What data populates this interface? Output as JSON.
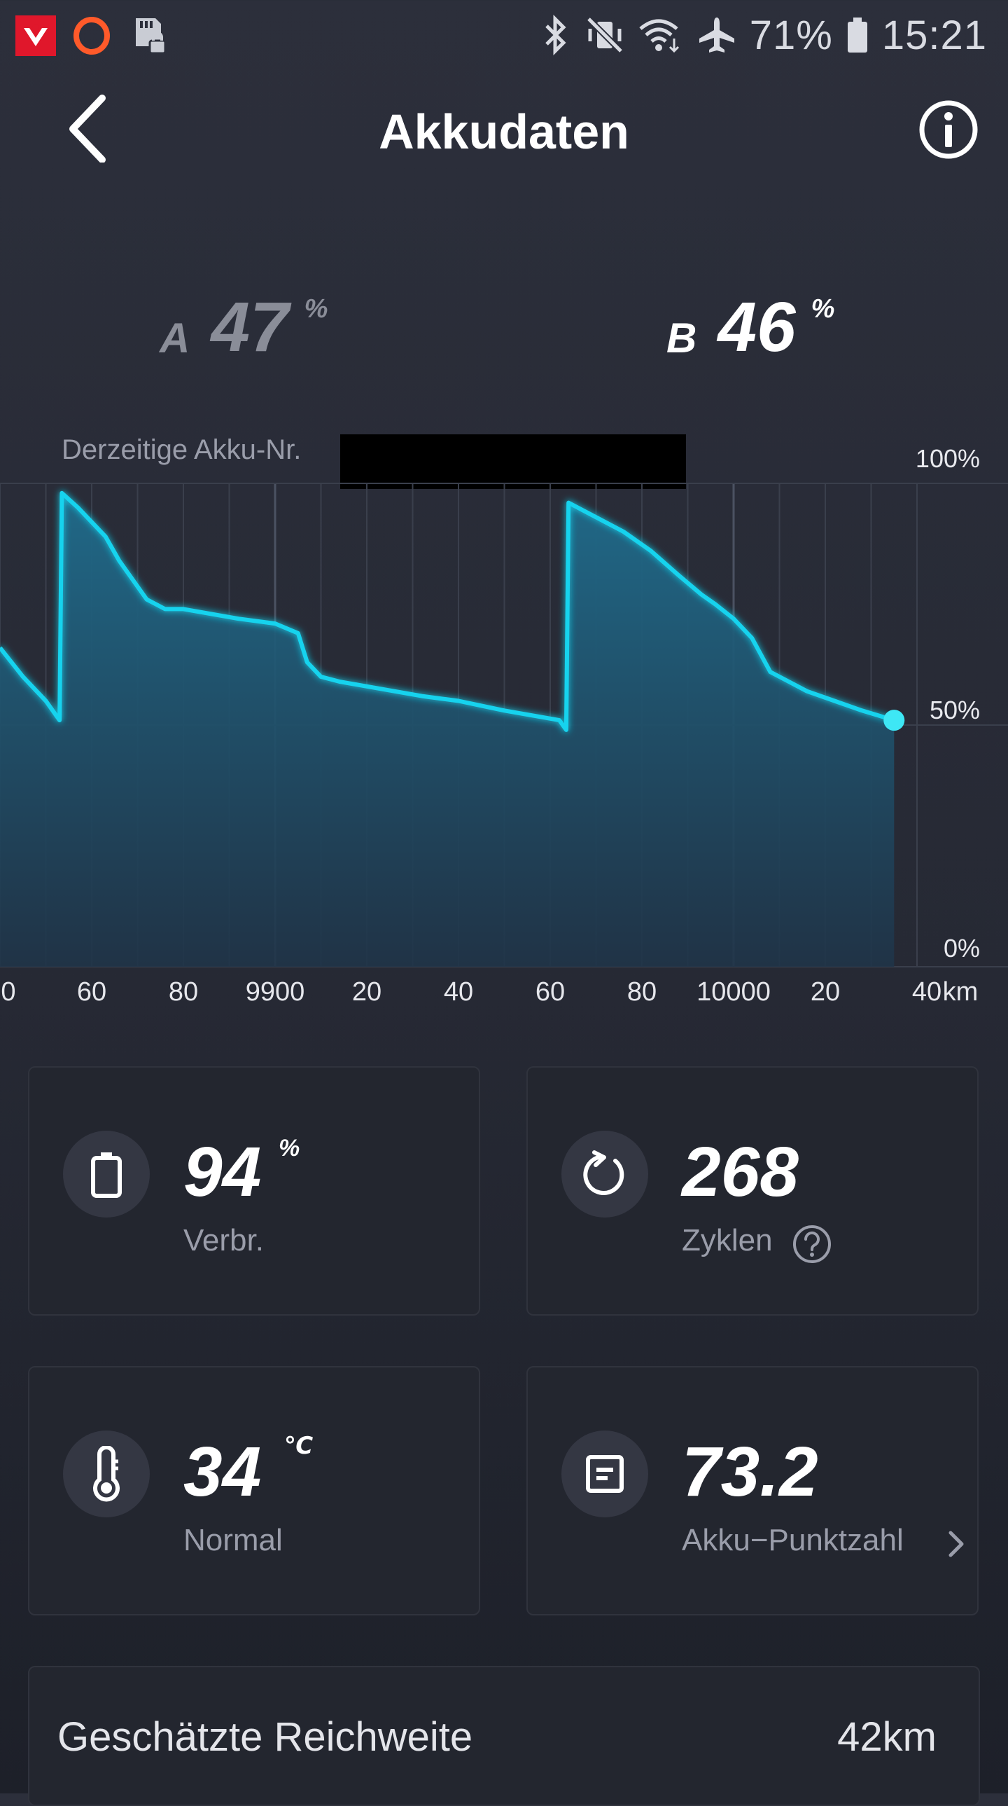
{
  "status_bar": {
    "battery": "71%",
    "time": "15:21",
    "left_icons": [
      "app-logo-icon",
      "opera-icon",
      "sd-card-lock-icon"
    ],
    "right_icons": [
      "bluetooth-icon",
      "vibrate-icon",
      "wifi-icon",
      "airplane-icon",
      "battery-icon"
    ]
  },
  "header": {
    "title": "Akkudaten",
    "back_icon": "chevron-left-icon",
    "info_icon": "info-icon"
  },
  "batteries": {
    "a": {
      "letter": "A",
      "value": "47",
      "unit": "%"
    },
    "b": {
      "letter": "B",
      "value": "46",
      "unit": "%"
    }
  },
  "chart": {
    "current_label": "Derzeitige Akku-Nr.",
    "y_labels": [
      "100%",
      "50%",
      "0%"
    ],
    "unit_label": "km"
  },
  "chart_data": {
    "type": "area",
    "x_tick_labels": [
      "0",
      "60",
      "80",
      "9900",
      "20",
      "40",
      "60",
      "80",
      "10000",
      "20",
      "40"
    ],
    "x_ticks": [
      9840,
      9860,
      9880,
      9900,
      9920,
      9940,
      9960,
      9980,
      10000,
      10020,
      10040
    ],
    "xlim": [
      9840,
      10050
    ],
    "ylim": [
      0,
      100
    ],
    "ylabel_unit": "%",
    "xlabel_unit": "km",
    "grid": true,
    "x": [
      9840,
      9845,
      9850,
      9853,
      9853.5,
      9857,
      9863,
      9866,
      9872,
      9876,
      9880,
      9886,
      9892,
      9900,
      9905,
      9907,
      9910,
      9914,
      9920,
      9926,
      9932,
      9940,
      9945,
      9950,
      9956,
      9962,
      9963.5,
      9964,
      9970,
      9976,
      9982,
      9988,
      9993,
      9996,
      10000,
      10004,
      10008,
      10012,
      10016,
      10022,
      10028,
      10035
    ],
    "y": [
      66,
      60,
      55,
      51,
      98,
      95,
      89,
      84,
      76,
      74,
      74,
      73,
      72,
      71,
      69,
      63,
      60,
      59,
      58,
      57,
      56,
      55,
      54,
      53,
      52,
      51,
      49,
      96,
      93,
      90,
      86,
      81,
      77,
      75,
      72,
      68,
      61,
      59,
      57,
      55,
      53,
      51
    ]
  },
  "cards": {
    "usage": {
      "icon": "battery-icon",
      "value": "94",
      "unit": "%",
      "label": "Verbr."
    },
    "cycles": {
      "icon": "refresh-icon",
      "value": "268",
      "label": "Zyklen",
      "help_icon": "help-icon"
    },
    "temperature": {
      "icon": "thermometer-icon",
      "value": "34",
      "unit": "℃",
      "label": "Normal"
    },
    "score": {
      "icon": "document-icon",
      "value": "73.2",
      "label": "Akku−Punktzahl",
      "arrow_icon": "chevron-right-icon"
    }
  },
  "range": {
    "label": "Geschätzte Reichweite",
    "value": "42km"
  },
  "colors": {
    "accent": "#19d3ee",
    "background": "#2a2d39",
    "card": "#23262f"
  }
}
